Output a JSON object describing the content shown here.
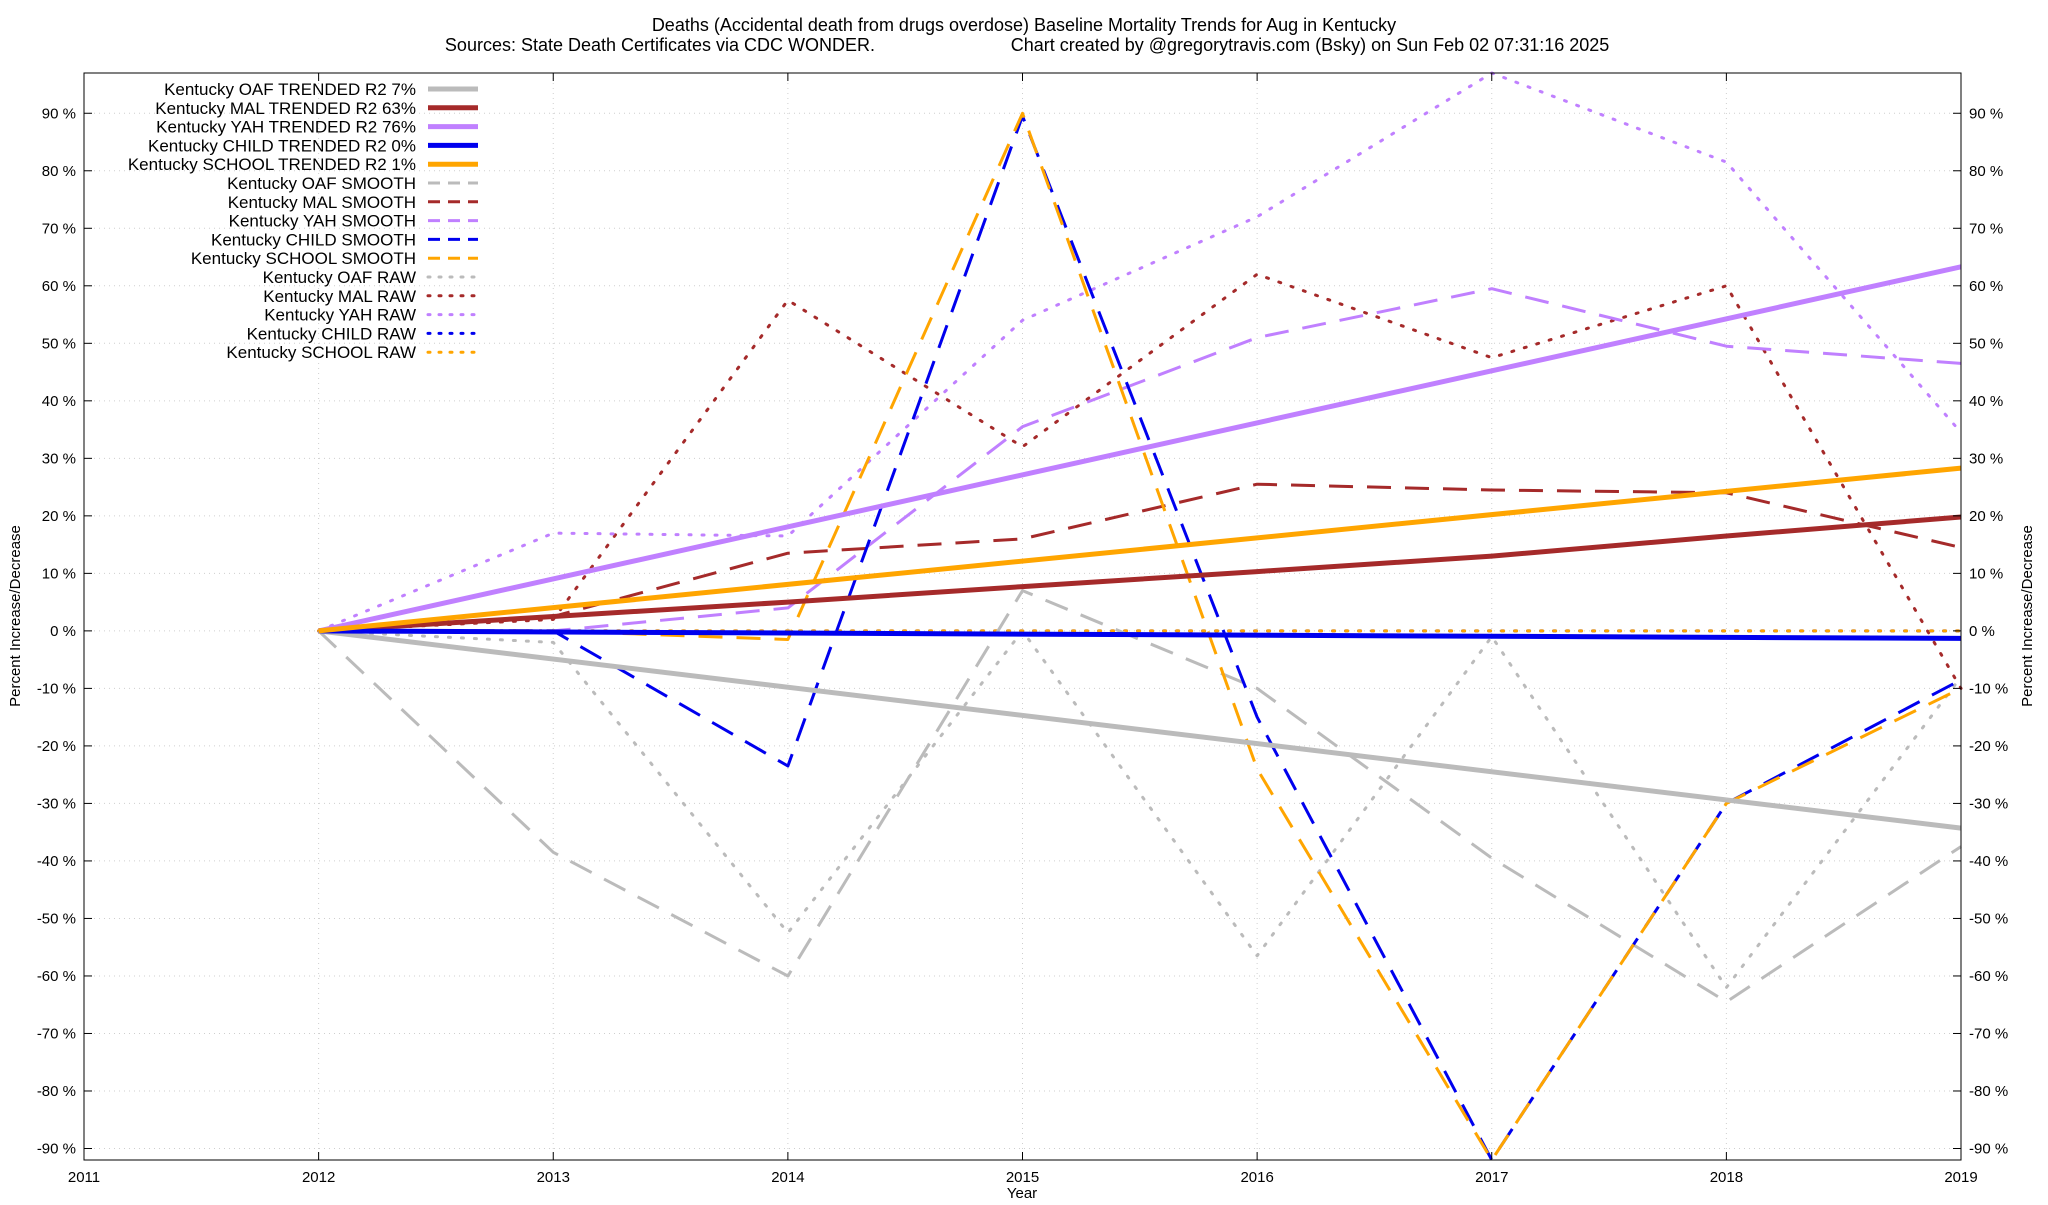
{
  "chart_data": {
    "type": "line",
    "title": "Deaths (Accidental death from drugs overdose)  Baseline Mortality Trends for Aug in Kentucky",
    "subtitle_left": "Sources: State Death Certificates via CDC WONDER.",
    "subtitle_right": "Chart created by @gregorytravis.com (Bsky) on Sun Feb 02 07:31:16 2025",
    "xlabel": "Year",
    "ylabel_left": "Percent Increase/Decrease",
    "ylabel_right": "Percent Increase/Decrease",
    "xlim": [
      2011,
      2019
    ],
    "ylim": [
      -92,
      97
    ],
    "x_ticks": [
      "2011",
      "2012",
      "2013",
      "2014",
      "2015",
      "2016",
      "2017",
      "2018",
      "2019"
    ],
    "y_ticks_left": [
      "90 %",
      "80 %",
      "70 %",
      "60 %",
      "50 %",
      "40 %",
      "30 %",
      "20 %",
      "10 %",
      "0 %",
      "-10 %",
      "-20 %",
      "-30 %",
      "-40 %",
      "-50 %",
      "-60 %",
      "-70 %",
      "-80 %",
      "-90 %"
    ],
    "y_ticks_right": [
      "90 %",
      "80 %",
      "70 %",
      "60 %",
      "50 %",
      "40 %",
      "30 %",
      "20 %",
      "10 %",
      "0 %",
      "-10 %",
      "-20 %",
      "-30 %",
      "-40 %",
      "-50 %",
      "-60 %",
      "-70 %",
      "-80 %",
      "-90 %"
    ],
    "y_tick_values": [
      90,
      80,
      70,
      60,
      50,
      40,
      30,
      20,
      10,
      0,
      -10,
      -20,
      -30,
      -40,
      -50,
      -60,
      -70,
      -80,
      -90
    ],
    "grid": true,
    "legend_position": "top-left",
    "series": [
      {
        "name": "Kentucky OAF TRENDED R2  7%",
        "style": "solid",
        "color": "#bbbbbb",
        "x": [
          2012,
          2019
        ],
        "values": [
          0,
          -34.3
        ]
      },
      {
        "name": "Kentucky MAL TRENDED R2  63%",
        "style": "solid",
        "color": "#a52a2a",
        "x": [
          2012,
          2013,
          2014,
          2015,
          2016,
          2017,
          2018,
          2019
        ],
        "values": [
          0,
          2.5,
          5,
          7.7,
          10.3,
          13,
          16.5,
          19.8
        ]
      },
      {
        "name": "Kentucky YAH TRENDED R2  76%",
        "style": "solid",
        "color": "#c080ff",
        "x": [
          2012,
          2019
        ],
        "values": [
          0,
          63.3
        ]
      },
      {
        "name": "Kentucky CHILD TRENDED R2   0%",
        "style": "solid",
        "color": "#0000ee",
        "x": [
          2012,
          2019
        ],
        "values": [
          0,
          -1.3
        ]
      },
      {
        "name": "Kentucky SCHOOL TRENDED R2   1%",
        "style": "solid",
        "color": "#ffa500",
        "x": [
          2012,
          2019
        ],
        "values": [
          0,
          28.3
        ]
      },
      {
        "name": "Kentucky OAF SMOOTH",
        "style": "dashed",
        "color": "#bbbbbb",
        "x": [
          2012,
          2013,
          2014,
          2015,
          2016,
          2017,
          2018,
          2019
        ],
        "values": [
          0,
          -38.5,
          -60,
          7,
          -10,
          -39.5,
          -64.5,
          -37.5
        ]
      },
      {
        "name": "Kentucky MAL SMOOTH",
        "style": "dashed",
        "color": "#a52a2a",
        "x": [
          2012,
          2013,
          2014,
          2015,
          2016,
          2017,
          2018,
          2019
        ],
        "values": [
          0,
          2.5,
          13.5,
          16,
          25.5,
          24.5,
          24,
          14.5
        ]
      },
      {
        "name": "Kentucky YAH SMOOTH",
        "style": "dashed",
        "color": "#c080ff",
        "x": [
          2012,
          2013,
          2014,
          2015,
          2016,
          2017,
          2018,
          2019
        ],
        "values": [
          0,
          0,
          4,
          35.5,
          51,
          59.5,
          49.5,
          46.5
        ]
      },
      {
        "name": "Kentucky CHILD SMOOTH",
        "style": "dashed",
        "color": "#0000ee",
        "x": [
          2012,
          2013,
          2014,
          2015,
          2016,
          2017,
          2018,
          2019
        ],
        "values": [
          0,
          0,
          -23.5,
          89.5,
          -15,
          -92,
          -30,
          -8.5
        ]
      },
      {
        "name": "Kentucky SCHOOL SMOOTH",
        "style": "dashed",
        "color": "#ffa500",
        "x": [
          2012,
          2013,
          2014,
          2015,
          2016,
          2017,
          2018,
          2019
        ],
        "values": [
          0,
          0,
          -1.5,
          90,
          -24,
          -92,
          -30,
          -10
        ]
      },
      {
        "name": "Kentucky OAF RAW",
        "style": "dotted",
        "color": "#bbbbbb",
        "x": [
          2012,
          2013,
          2014,
          2015,
          2016,
          2017,
          2018,
          2019
        ],
        "values": [
          0,
          -2,
          -52.5,
          0,
          -56.5,
          -1,
          -62,
          -8
        ]
      },
      {
        "name": "Kentucky MAL RAW",
        "style": "dotted",
        "color": "#a52a2a",
        "x": [
          2012,
          2013,
          2014,
          2015,
          2016,
          2017,
          2018,
          2019
        ],
        "values": [
          0,
          2,
          57.5,
          32,
          62,
          47.5,
          60,
          -10
        ]
      },
      {
        "name": "Kentucky YAH RAW",
        "style": "dotted",
        "color": "#c080ff",
        "x": [
          2012,
          2013,
          2014,
          2015,
          2016,
          2017,
          2018,
          2019
        ],
        "values": [
          0,
          17,
          16.5,
          54,
          72,
          97,
          81.5,
          34.5
        ]
      },
      {
        "name": "Kentucky CHILD RAW",
        "style": "dotted",
        "color": "#0000ee",
        "x": [
          2012,
          2013,
          2014,
          2015,
          2016,
          2017,
          2018,
          2019
        ],
        "values": [
          0,
          0,
          0,
          0,
          0,
          0,
          0,
          0
        ]
      },
      {
        "name": "Kentucky SCHOOL RAW",
        "style": "dotted",
        "color": "#ffa500",
        "x": [
          2012,
          2013,
          2014,
          2015,
          2016,
          2017,
          2018,
          2019
        ],
        "values": [
          0,
          0,
          0,
          0,
          0,
          0,
          0,
          0
        ]
      }
    ]
  }
}
